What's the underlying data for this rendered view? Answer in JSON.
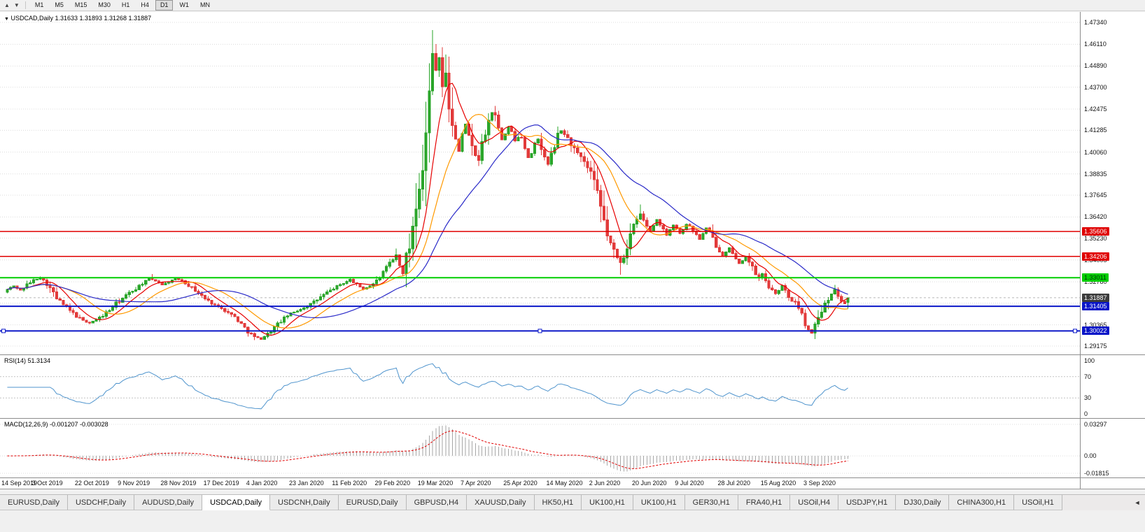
{
  "toolbar": {
    "left_icons": [
      {
        "name": "scroll-up-icon",
        "glyph": "▲"
      },
      {
        "name": "scroll-down-icon",
        "glyph": "▼"
      }
    ],
    "timeframes": [
      "M1",
      "M5",
      "M15",
      "M30",
      "H1",
      "H4",
      "D1",
      "W1",
      "MN"
    ],
    "active_timeframe": "D1"
  },
  "chart": {
    "marker_glyph": "▼",
    "symbol": "USDCAD",
    "timeframe": "Daily",
    "title_text": "USDCAD,Daily 1.31633 1.31893 1.31268 1.31887",
    "ohlc": {
      "open": "1.31633",
      "high": "1.31893",
      "low": "1.31268",
      "close": "1.31887"
    },
    "rsi_title": "RSI(14) 51.3134",
    "macd_title": "MACD(12,26,9) -0.001207 -0.003028"
  },
  "chart_data": {
    "type": "candlestick",
    "title": "USDCAD,Daily",
    "price_axis": {
      "max": 1.4734,
      "min": 1.29175,
      "ticks": [
        "1.47340",
        "1.46110",
        "1.44890",
        "1.43700",
        "1.42475",
        "1.41285",
        "1.40060",
        "1.38835",
        "1.37645",
        "1.36420",
        "1.35230",
        "1.34005",
        "1.32780",
        "1.31590",
        "1.30365",
        "1.29175"
      ]
    },
    "x_labels": [
      "14 Sep 2019",
      "3 Oct 2019",
      "22 Oct 2019",
      "9 Nov 2019",
      "28 Nov 2019",
      "17 Dec 2019",
      "4 Jan 2020",
      "23 Jan 2020",
      "11 Feb 2020",
      "29 Feb 2020",
      "19 Mar 2020",
      "7 Apr 2020",
      "25 Apr 2020",
      "14 May 2020",
      "2 Jun 2020",
      "20 Jun 2020",
      "9 Jul 2020",
      "28 Jul 2020",
      "15 Aug 2020",
      "3 Sep 2020"
    ],
    "bars_per_label": 13,
    "total_bars": 256,
    "close_waypoints": [
      [
        0,
        1.3235
      ],
      [
        2,
        1.3255
      ],
      [
        4,
        1.323
      ],
      [
        6,
        1.3262
      ],
      [
        8,
        1.3288
      ],
      [
        10,
        1.33
      ],
      [
        12,
        1.3268
      ],
      [
        13,
        1.324
      ],
      [
        15,
        1.3185
      ],
      [
        17,
        1.315
      ],
      [
        19,
        1.3115
      ],
      [
        21,
        1.3085
      ],
      [
        23,
        1.306
      ],
      [
        25,
        1.3048
      ],
      [
        27,
        1.3065
      ],
      [
        29,
        1.309
      ],
      [
        31,
        1.312
      ],
      [
        33,
        1.3155
      ],
      [
        35,
        1.3185
      ],
      [
        37,
        1.3215
      ],
      [
        39,
        1.324
      ],
      [
        41,
        1.327
      ],
      [
        43,
        1.3295
      ],
      [
        45,
        1.3285
      ],
      [
        47,
        1.3262
      ],
      [
        49,
        1.3278
      ],
      [
        51,
        1.3296
      ],
      [
        53,
        1.3288
      ],
      [
        55,
        1.3258
      ],
      [
        57,
        1.323
      ],
      [
        59,
        1.3198
      ],
      [
        61,
        1.317
      ],
      [
        63,
        1.3148
      ],
      [
        65,
        1.3132
      ],
      [
        67,
        1.3105
      ],
      [
        69,
        1.3082
      ],
      [
        71,
        1.304
      ],
      [
        73,
        1.3
      ],
      [
        75,
        1.2968
      ],
      [
        77,
        1.2958
      ],
      [
        79,
        1.2985
      ],
      [
        81,
        1.3022
      ],
      [
        83,
        1.3058
      ],
      [
        85,
        1.3088
      ],
      [
        87,
        1.3108
      ],
      [
        89,
        1.3125
      ],
      [
        91,
        1.3142
      ],
      [
        93,
        1.3165
      ],
      [
        95,
        1.3192
      ],
      [
        97,
        1.3218
      ],
      [
        99,
        1.3242
      ],
      [
        101,
        1.3262
      ],
      [
        103,
        1.328
      ],
      [
        104,
        1.329
      ],
      [
        106,
        1.3262
      ],
      [
        108,
        1.3238
      ],
      [
        110,
        1.3255
      ],
      [
        112,
        1.3282
      ],
      [
        114,
        1.3328
      ],
      [
        116,
        1.3378
      ],
      [
        117,
        1.3402
      ],
      [
        118,
        1.3428
      ],
      [
        119,
        1.3368
      ],
      [
        120,
        1.333
      ],
      [
        121,
        1.3415
      ],
      [
        122,
        1.348
      ],
      [
        123,
        1.361
      ],
      [
        124,
        1.3735
      ],
      [
        125,
        1.3858
      ],
      [
        126,
        1.3952
      ],
      [
        127,
        1.409
      ],
      [
        128,
        1.433
      ],
      [
        129,
        1.456
      ],
      [
        130,
        1.447
      ],
      [
        131,
        1.454
      ],
      [
        132,
        1.4375
      ],
      [
        133,
        1.442
      ],
      [
        134,
        1.4262
      ],
      [
        135,
        1.418
      ],
      [
        136,
        1.408
      ],
      [
        137,
        1.401
      ],
      [
        138,
        1.411
      ],
      [
        139,
        1.4165
      ],
      [
        140,
        1.4088
      ],
      [
        141,
        1.4018
      ],
      [
        142,
        1.3985
      ],
      [
        143,
        1.3965
      ],
      [
        144,
        1.404
      ],
      [
        145,
        1.412
      ],
      [
        146,
        1.418
      ],
      [
        147,
        1.4228
      ],
      [
        148,
        1.4205
      ],
      [
        149,
        1.413
      ],
      [
        150,
        1.4075
      ],
      [
        151,
        1.4105
      ],
      [
        152,
        1.4148
      ],
      [
        153,
        1.412
      ],
      [
        154,
        1.4068
      ],
      [
        155,
        1.4095
      ],
      [
        156,
        1.4088
      ],
      [
        157,
        1.4035
      ],
      [
        158,
        1.3978
      ],
      [
        159,
        1.3995
      ],
      [
        160,
        1.4052
      ],
      [
        161,
        1.408
      ],
      [
        162,
        1.4028
      ],
      [
        163,
        1.3972
      ],
      [
        164,
        1.3938
      ],
      [
        165,
        1.3988
      ],
      [
        166,
        1.4048
      ],
      [
        167,
        1.4098
      ],
      [
        168,
        1.4125
      ],
      [
        169,
        1.4108
      ],
      [
        171,
        1.4052
      ],
      [
        173,
        1.3992
      ],
      [
        175,
        1.3945
      ],
      [
        177,
        1.3888
      ],
      [
        179,
        1.376
      ],
      [
        181,
        1.3622
      ],
      [
        182,
        1.3545
      ],
      [
        183,
        1.3488
      ],
      [
        184,
        1.3445
      ],
      [
        185,
        1.3412
      ],
      [
        186,
        1.3388
      ],
      [
        187,
        1.3425
      ],
      [
        188,
        1.3482
      ],
      [
        189,
        1.3542
      ],
      [
        190,
        1.3582
      ],
      [
        191,
        1.3625
      ],
      [
        192,
        1.3658
      ],
      [
        193,
        1.3622
      ],
      [
        194,
        1.3588
      ],
      [
        195,
        1.3562
      ],
      [
        196,
        1.3595
      ],
      [
        197,
        1.3628
      ],
      [
        198,
        1.3602
      ],
      [
        199,
        1.3568
      ],
      [
        200,
        1.3542
      ],
      [
        201,
        1.3572
      ],
      [
        202,
        1.3598
      ],
      [
        203,
        1.3575
      ],
      [
        204,
        1.3548
      ],
      [
        205,
        1.3572
      ],
      [
        206,
        1.3602
      ],
      [
        207,
        1.3588
      ],
      [
        208,
        1.3565
      ],
      [
        209,
        1.3542
      ],
      [
        210,
        1.3518
      ],
      [
        211,
        1.3548
      ],
      [
        212,
        1.3578
      ],
      [
        213,
        1.3555
      ],
      [
        214,
        1.3522
      ],
      [
        215,
        1.3488
      ],
      [
        216,
        1.3455
      ],
      [
        217,
        1.3425
      ],
      [
        218,
        1.3448
      ],
      [
        219,
        1.3468
      ],
      [
        220,
        1.3432
      ],
      [
        221,
        1.3402
      ],
      [
        222,
        1.3378
      ],
      [
        223,
        1.3398
      ],
      [
        224,
        1.3418
      ],
      [
        225,
        1.3388
      ],
      [
        226,
        1.3352
      ],
      [
        227,
        1.3322
      ],
      [
        228,
        1.3298
      ],
      [
        229,
        1.3318
      ],
      [
        230,
        1.3285
      ],
      [
        231,
        1.3255
      ],
      [
        232,
        1.3228
      ],
      [
        233,
        1.3208
      ],
      [
        234,
        1.3232
      ],
      [
        235,
        1.3258
      ],
      [
        236,
        1.3225
      ],
      [
        237,
        1.3185
      ],
      [
        238,
        1.3158
      ],
      [
        239,
        1.3178
      ],
      [
        240,
        1.3128
      ],
      [
        241,
        1.3082
      ],
      [
        242,
        1.3048
      ],
      [
        243,
        1.3008
      ],
      [
        244,
        1.2995
      ],
      [
        245,
        1.3032
      ],
      [
        246,
        1.3078
      ],
      [
        247,
        1.3125
      ],
      [
        248,
        1.3162
      ],
      [
        249,
        1.3188
      ],
      [
        250,
        1.3215
      ],
      [
        251,
        1.3232
      ],
      [
        252,
        1.3198
      ],
      [
        253,
        1.3172
      ],
      [
        254,
        1.3158
      ],
      [
        255,
        1.3189
      ]
    ],
    "extremes": [
      {
        "bar": 10,
        "high": 1.3308
      },
      {
        "bar": 44,
        "high": 1.3322
      },
      {
        "bar": 75,
        "low": 1.2951
      },
      {
        "bar": 118,
        "high": 1.3464
      },
      {
        "bar": 129,
        "high": 1.4668
      },
      {
        "bar": 130,
        "high": 1.4612
      },
      {
        "bar": 143,
        "low": 1.393
      },
      {
        "bar": 148,
        "high": 1.4265
      },
      {
        "bar": 164,
        "low": 1.3928
      },
      {
        "bar": 186,
        "low": 1.3318
      },
      {
        "bar": 192,
        "high": 1.3712
      },
      {
        "bar": 244,
        "low": 1.299
      },
      {
        "bar": 251,
        "high": 1.326
      }
    ],
    "last_bar": {
      "open": 1.31633,
      "high": 1.31893,
      "low": 1.31268,
      "close": 1.31887
    },
    "moving_averages": [
      {
        "period": 8,
        "color": "#e60000"
      },
      {
        "period": 17,
        "color": "#ff9900"
      },
      {
        "period": 34,
        "color": "#2929c8"
      }
    ],
    "levels": [
      {
        "value": 1.35606,
        "label": "1.35606",
        "color": "#e00000",
        "text": "#ffffff",
        "width": 1.5
      },
      {
        "value": 1.34206,
        "label": "1.34206",
        "color": "#e00000",
        "text": "#ffffff",
        "width": 1.5
      },
      {
        "value": 1.33011,
        "label": "1.33011",
        "color": "#00ce00",
        "text": "#00330a",
        "width": 2
      },
      {
        "value": 1.31405,
        "label": "1.31405",
        "color": "#0a16c8",
        "text": "#ffffff",
        "width": 2
      },
      {
        "value": 1.30022,
        "label": "1.30022",
        "color": "#0a16c8",
        "text": "#ffffff",
        "width": 2,
        "selected": true
      }
    ],
    "current_price": {
      "value": 1.31887,
      "label": "1.31887",
      "bg": "#3c3c3c",
      "text": "#ffffff"
    },
    "candle_colors": {
      "up": "#2aa52a",
      "down": "#e23a3a"
    },
    "rsi": {
      "period": 14,
      "current": "51.3134",
      "color": "#4f94cd",
      "ticks": [
        100,
        70,
        30,
        0
      ],
      "levels": [
        70,
        30
      ]
    },
    "macd": {
      "fast": 12,
      "slow": 26,
      "signal": 9,
      "values": [
        "-0.001207",
        "-0.003028"
      ],
      "hist_color": "#a6a6a6",
      "signal_color": "#e00000",
      "ticks": [
        {
          "v": 0.03297,
          "label": "0.03297"
        },
        {
          "v": 0,
          "label": "0.00"
        },
        {
          "v": -0.01815,
          "label": "-0.01815"
        }
      ]
    }
  },
  "tabs": [
    {
      "label": "EURUSD,Daily"
    },
    {
      "label": "USDCHF,Daily"
    },
    {
      "label": "AUDUSD,Daily"
    },
    {
      "label": "USDCAD,Daily",
      "active": true
    },
    {
      "label": "USDCNH,Daily"
    },
    {
      "label": "EURUSD,Daily"
    },
    {
      "label": "GBPUSD,H4"
    },
    {
      "label": "XAUUSD,Daily"
    },
    {
      "label": "HK50,H1"
    },
    {
      "label": "UK100,H1"
    },
    {
      "label": "UK100,H1"
    },
    {
      "label": "GER30,H1"
    },
    {
      "label": "FRA40,H1"
    },
    {
      "label": "USOil,H4"
    },
    {
      "label": "USDJPY,H1"
    },
    {
      "label": "DJ30,Daily"
    },
    {
      "label": "CHINA300,H1"
    },
    {
      "label": "USOil,H1"
    }
  ],
  "tab_scroll_icon": "◄"
}
